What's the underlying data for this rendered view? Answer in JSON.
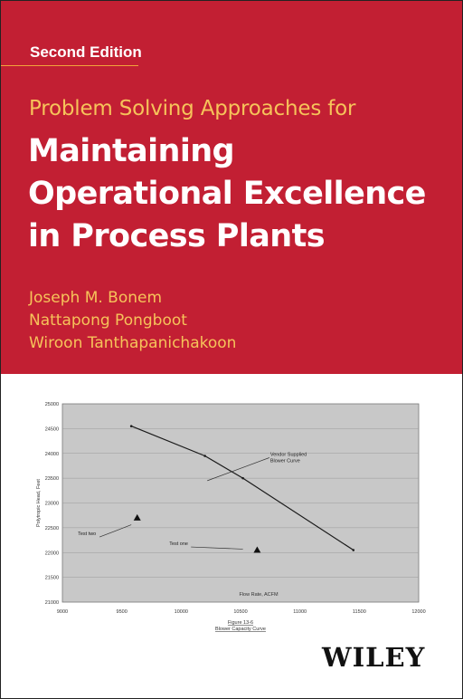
{
  "cover": {
    "edition": "Second Edition",
    "subtitle": "Problem Solving Approaches for",
    "title_lines": [
      "Maintaining",
      "Operational Excellence",
      "in Process Plants"
    ],
    "authors": [
      "Joseph M. Bonem",
      "Nattapong Pongboot",
      "Wiroon Tanthapanichakoon"
    ],
    "publisher": "WILEY",
    "colors": {
      "band": "#c21f33",
      "accent": "#f6c35a",
      "rule": "#f2a33a",
      "plot_bg": "#c8c8c8"
    }
  },
  "chart_data": {
    "type": "scatter",
    "ylabel": "Polytropic Head, Feet",
    "xlabel": "Flow Rate, ACFM",
    "caption_lines": [
      "Figure 13-6",
      "Blower Capacity Curve"
    ],
    "xlim": [
      9000,
      12000
    ],
    "ylim": [
      21000,
      25000
    ],
    "x_ticks": [
      "9000",
      "9500",
      "10000",
      "10500",
      "11000",
      "11500",
      "12000"
    ],
    "y_ticks": [
      "21000",
      "21500",
      "22000",
      "22500",
      "23000",
      "23500",
      "24000",
      "24500",
      "25000"
    ],
    "grid": true,
    "series": [
      {
        "marker": "line",
        "points": [
          [
            9580,
            24550
          ],
          [
            10200,
            23950
          ],
          [
            10520,
            23500
          ],
          [
            11450,
            22050
          ]
        ]
      },
      {
        "marker": "triangle",
        "points": [
          [
            9630,
            22700
          ],
          [
            10640,
            22050
          ]
        ]
      }
    ],
    "annotations": [
      {
        "text_lines": [
          "Vendor Supplied",
          "Blower Curve"
        ],
        "x": 10750,
        "y": 23950,
        "arrow_to": [
          10220,
          23450
        ]
      },
      {
        "text_lines": [
          "Test two"
        ],
        "x": 9130,
        "y": 22350,
        "arrow_to": [
          9580,
          22560
        ]
      },
      {
        "text_lines": [
          "Test one"
        ],
        "x": 9900,
        "y": 22150,
        "arrow_to": [
          10520,
          22070
        ]
      }
    ]
  }
}
